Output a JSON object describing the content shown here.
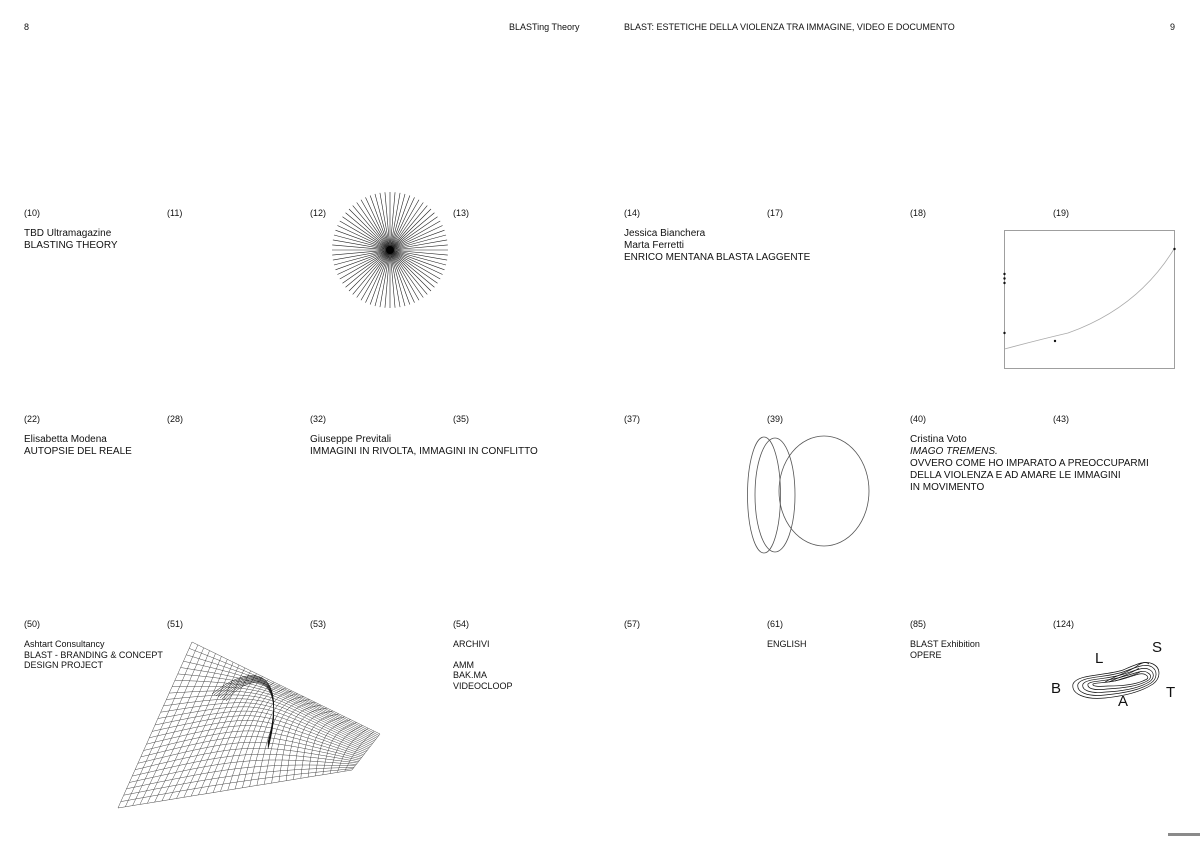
{
  "header": {
    "left_page_number": "8",
    "left_running_title": "BLASTing Theory",
    "right_running_title": "BLAST: ESTETICHE DELLA VIOLENZA TRA IMMAGINE, VIDEO E DOCUMENTO",
    "right_page_number": "9"
  },
  "rows": [
    {
      "cells": [
        {
          "num": "(10)",
          "lines": [
            "TBD Ultramagazine",
            "BLASTING THEORY"
          ]
        },
        {
          "num": "(11)",
          "lines": []
        },
        {
          "num": "(12)",
          "lines": []
        },
        {
          "num": "(13)",
          "lines": []
        },
        {
          "num": "(14)",
          "lines": [
            "Jessica Bianchera",
            "Marta Ferretti",
            "ENRICO MENTANA BLASTA LAGGENTE"
          ]
        },
        {
          "num": "(17)",
          "lines": []
        },
        {
          "num": "(18)",
          "lines": []
        },
        {
          "num": "(19)",
          "lines": []
        }
      ]
    },
    {
      "cells": [
        {
          "num": "(22)",
          "lines": [
            "Elisabetta Modena",
            "AUTOPSIE DEL REALE"
          ]
        },
        {
          "num": "(28)",
          "lines": []
        },
        {
          "num": "(32)",
          "lines": [
            "Giuseppe Previtali",
            "IMMAGINI IN RIVOLTA, IMMAGINI IN CONFLITTO"
          ]
        },
        {
          "num": "(35)",
          "lines": []
        },
        {
          "num": "(37)",
          "lines": []
        },
        {
          "num": "(39)",
          "lines": []
        },
        {
          "num": "(40)",
          "lines": [
            "Cristina Voto",
            "IMAGO TREMENS.",
            "OVVERO COME HO IMPARATO A PREOCCUPARMI",
            "DELLA VIOLENZA E AD AMARE LE IMMAGINI",
            "IN MOVIMENTO"
          ]
        },
        {
          "num": "(43)",
          "lines": []
        }
      ]
    },
    {
      "cells": [
        {
          "num": "(50)",
          "lines": [
            "Ashtart Consultancy",
            "BLAST - BRANDING & CONCEPT",
            "DESIGN PROJECT"
          ]
        },
        {
          "num": "(51)",
          "lines": []
        },
        {
          "num": "(53)",
          "lines": []
        },
        {
          "num": "(54)",
          "lines": [
            "ARCHIVI",
            "",
            "AMM",
            "BAK.MA",
            "VIDEOCLOOP"
          ]
        },
        {
          "num": "(57)",
          "lines": []
        },
        {
          "num": "(61)",
          "lines": [
            "ENGLISH"
          ]
        },
        {
          "num": "(85)",
          "lines": [
            "BLAST Exhibition",
            "OPERE"
          ]
        },
        {
          "num": "(124)",
          "lines": []
        }
      ]
    }
  ],
  "logo_letters": {
    "b": "B",
    "l": "L",
    "a": "A",
    "s": "S",
    "t": "T"
  },
  "illustrations": {
    "starburst": "radial-line-burst",
    "curve_plot": "quarter-curve-in-box",
    "ellipses": "three-overlapping-ellipses",
    "wireframe": "wireframe-mesh-surface",
    "blast_logo": "contour-rings-logo"
  },
  "colors": {
    "ink": "#111111",
    "paper": "#ffffff",
    "thin_line": "#555555"
  }
}
